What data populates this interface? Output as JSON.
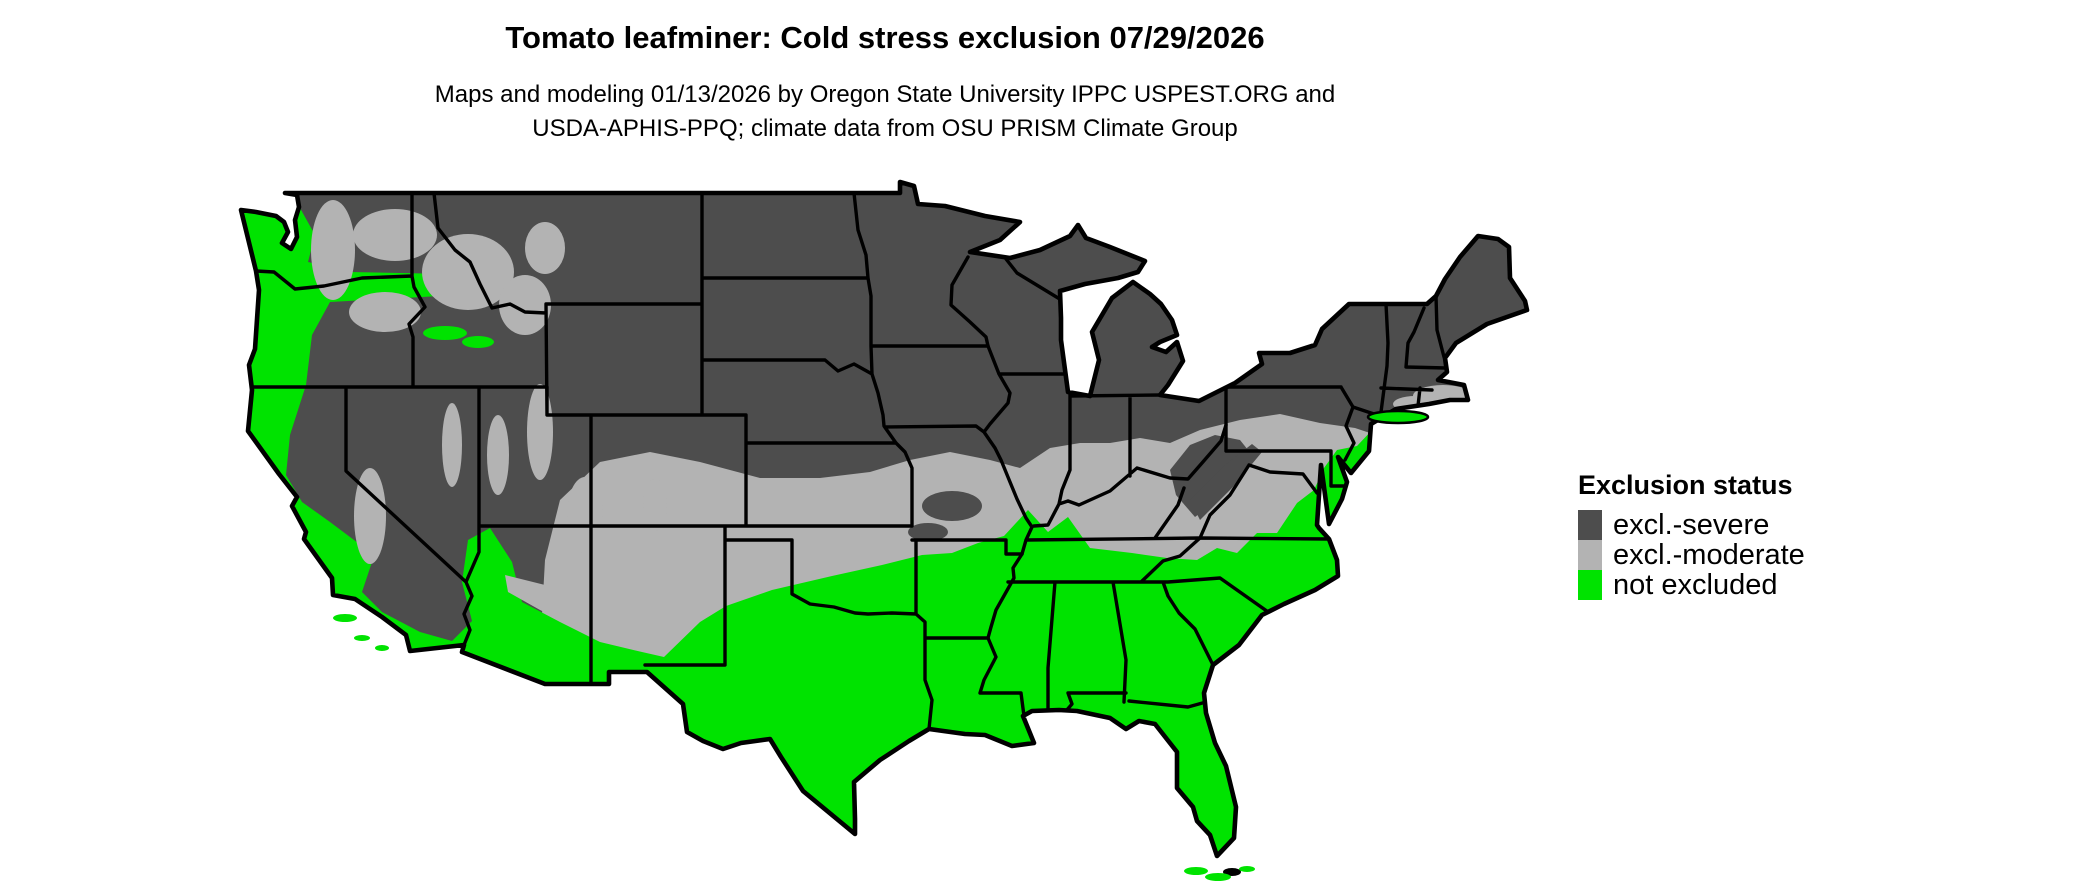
{
  "header": {
    "title": "Tomato leafminer: Cold stress exclusion 07/29/2026",
    "subtitle_line1": "Maps and modeling 01/13/2026 by Oregon State University IPPC USPEST.ORG and",
    "subtitle_line2": "USDA-APHIS-PPQ; climate data from OSU PRISM Climate Group"
  },
  "legend": {
    "title": "Exclusion status",
    "items": [
      {
        "label": "excl.-severe",
        "color": "#4D4D4D"
      },
      {
        "label": "excl.-moderate",
        "color": "#B3B3B3"
      },
      {
        "label": "not excluded",
        "color": "#00E300"
      }
    ]
  },
  "map": {
    "background": "#FFFFFF",
    "border_color": "#000000",
    "region_colors": {
      "severe": "#4D4D4D",
      "moderate": "#B3B3B3",
      "not_excluded": "#00E300"
    }
  }
}
